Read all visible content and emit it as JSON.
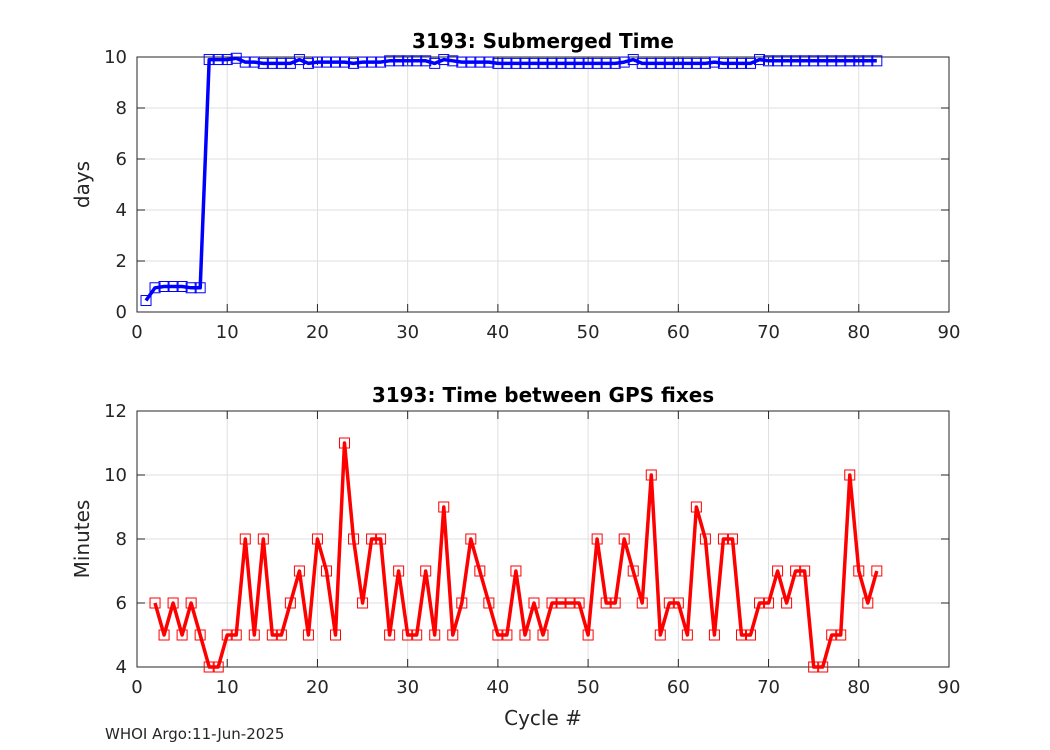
{
  "chart_data": [
    {
      "type": "line",
      "title": "3193: Submerged Time",
      "xlabel": "",
      "ylabel": "days",
      "xlim": [
        0,
        90
      ],
      "ylim": [
        0,
        10
      ],
      "xticks": [
        "0",
        "10",
        "20",
        "30",
        "40",
        "50",
        "60",
        "70",
        "80",
        "90"
      ],
      "yticks": [
        "0",
        "2",
        "4",
        "6",
        "8",
        "10"
      ],
      "grid": true,
      "color": "#0000ff",
      "marker": "square",
      "series": [
        {
          "x": [
            1,
            2,
            3,
            4,
            5,
            6,
            7,
            8,
            9,
            10,
            11,
            12,
            13,
            14,
            15,
            16,
            17,
            18,
            19,
            20,
            21,
            22,
            23,
            24,
            25,
            26,
            27,
            28,
            29,
            30,
            31,
            32,
            33,
            34,
            35,
            36,
            37,
            38,
            39,
            40,
            41,
            42,
            43,
            44,
            45,
            46,
            47,
            48,
            49,
            50,
            51,
            52,
            53,
            54,
            55,
            56,
            57,
            58,
            59,
            60,
            61,
            62,
            63,
            64,
            65,
            66,
            67,
            68,
            69,
            70,
            71,
            72,
            73,
            74,
            75,
            76,
            77,
            78,
            79,
            80,
            81,
            82
          ],
          "values": [
            0.45,
            0.95,
            1.0,
            1.0,
            1.0,
            0.95,
            0.95,
            9.9,
            9.9,
            9.9,
            9.95,
            9.8,
            9.8,
            9.75,
            9.75,
            9.75,
            9.75,
            9.9,
            9.75,
            9.8,
            9.8,
            9.8,
            9.8,
            9.75,
            9.8,
            9.8,
            9.8,
            9.85,
            9.85,
            9.85,
            9.85,
            9.85,
            9.75,
            9.9,
            9.85,
            9.8,
            9.8,
            9.8,
            9.8,
            9.75,
            9.75,
            9.75,
            9.75,
            9.75,
            9.75,
            9.75,
            9.75,
            9.75,
            9.75,
            9.75,
            9.75,
            9.75,
            9.75,
            9.8,
            9.9,
            9.75,
            9.75,
            9.75,
            9.75,
            9.75,
            9.75,
            9.75,
            9.75,
            9.8,
            9.75,
            9.75,
            9.75,
            9.75,
            9.9,
            9.85,
            9.85,
            9.85,
            9.85,
            9.85,
            9.85,
            9.85,
            9.85,
            9.85,
            9.85,
            9.85,
            9.85,
            9.85
          ]
        }
      ]
    },
    {
      "type": "line",
      "title": "3193: Time between GPS fixes",
      "xlabel": "Cycle #",
      "ylabel": "Minutes",
      "xlim": [
        0,
        90
      ],
      "ylim": [
        4,
        12
      ],
      "xticks": [
        "0",
        "10",
        "20",
        "30",
        "40",
        "50",
        "60",
        "70",
        "80",
        "90"
      ],
      "yticks": [
        "4",
        "6",
        "8",
        "10",
        "12"
      ],
      "grid": true,
      "color": "#ff0000",
      "marker": "square",
      "series": [
        {
          "x": [
            2,
            3,
            4,
            5,
            6,
            7,
            8,
            9,
            10,
            11,
            12,
            13,
            14,
            15,
            16,
            17,
            18,
            19,
            20,
            21,
            22,
            23,
            24,
            25,
            26,
            27,
            28,
            29,
            30,
            31,
            32,
            33,
            34,
            35,
            36,
            37,
            38,
            39,
            40,
            41,
            42,
            43,
            44,
            45,
            46,
            47,
            48,
            49,
            50,
            51,
            52,
            53,
            54,
            55,
            56,
            57,
            58,
            59,
            60,
            61,
            62,
            63,
            64,
            65,
            66,
            67,
            68,
            69,
            70,
            71,
            72,
            73,
            74,
            75,
            76,
            77,
            78,
            79,
            80,
            81,
            82
          ],
          "values": [
            6,
            5,
            6,
            5,
            6,
            5,
            4,
            4,
            5,
            5,
            8,
            5,
            8,
            5,
            5,
            6,
            7,
            5,
            8,
            7,
            5,
            11,
            8,
            6,
            8,
            8,
            5,
            7,
            5,
            5,
            7,
            5,
            9,
            5,
            6,
            8,
            7,
            6,
            5,
            5,
            7,
            5,
            6,
            5,
            6,
            6,
            6,
            6,
            5,
            8,
            6,
            6,
            8,
            7,
            6,
            10,
            5,
            6,
            6,
            5,
            9,
            8,
            5,
            8,
            8,
            5,
            5,
            6,
            6,
            7,
            6,
            7,
            7,
            4,
            4,
            5,
            5,
            10,
            7,
            6,
            7
          ]
        }
      ]
    }
  ],
  "footer": "WHOI Argo:11-Jun-2025"
}
